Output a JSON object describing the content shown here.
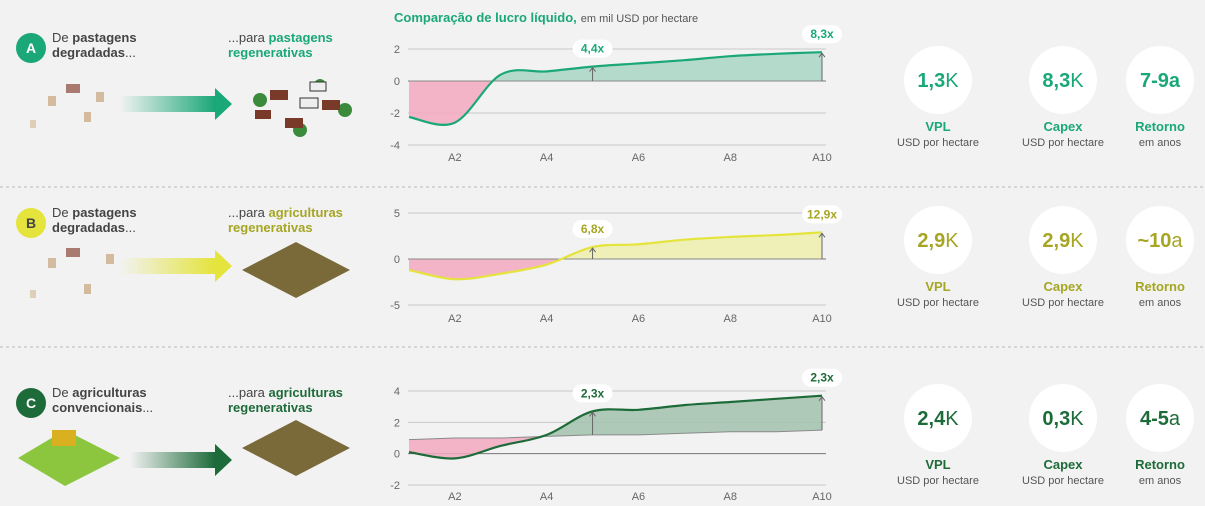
{
  "chart_data": [
    {
      "type": "line",
      "title": "Comparação de lucro líquido,",
      "subtitle": "em mil USD por hectare",
      "categories": [
        null,
        "A2",
        null,
        "A4",
        null,
        "A6",
        null,
        "A8",
        null,
        "A10"
      ],
      "series": [
        {
          "color": "#1aa878",
          "values": [
            -2.25,
            -2.6,
            0.4,
            0.6,
            0.9,
            1.1,
            1.3,
            1.55,
            1.7,
            1.8
          ]
        },
        {
          "color": "#8a8a8a",
          "values": [
            0,
            0,
            0,
            0,
            0,
            0,
            0,
            0,
            0,
            0
          ]
        }
      ],
      "fill_above": "#a9d6c4",
      "fill_below": "#f2a9be",
      "ylim": [
        -4,
        2
      ],
      "yticks": [
        -4,
        -2,
        0,
        2
      ],
      "grid": true,
      "annotations": [
        "4,4x",
        "8,3x"
      ]
    },
    {
      "type": "line",
      "categories": [
        null,
        "A2",
        null,
        "A4",
        null,
        "A6",
        null,
        "A8",
        null,
        "A10"
      ],
      "series": [
        {
          "color": "#e4e43c",
          "values": [
            -1.2,
            -2.2,
            -1.6,
            -0.6,
            1.3,
            1.6,
            2.1,
            2.4,
            2.6,
            2.9
          ]
        },
        {
          "color": "#8a8a8a",
          "values": [
            0,
            0,
            0,
            0,
            0,
            0,
            0,
            0,
            0,
            0
          ]
        }
      ],
      "fill_above": "#efefae",
      "fill_below": "#f2a9be",
      "ylim": [
        -5,
        5
      ],
      "yticks": [
        -5,
        0,
        5
      ],
      "grid": true,
      "annotations": [
        "6,8x",
        "12,9x"
      ]
    },
    {
      "type": "line",
      "categories": [
        null,
        "A2",
        null,
        "A4",
        null,
        "A6",
        null,
        "A8",
        null,
        "A10"
      ],
      "series": [
        {
          "color": "#1e6b3a",
          "values": [
            0.1,
            -0.3,
            0.5,
            1.2,
            2.7,
            2.8,
            3.1,
            3.3,
            3.5,
            3.7
          ]
        },
        {
          "color": "#8a8a8a",
          "values": [
            0.9,
            1.0,
            1.0,
            1.1,
            1.2,
            1.2,
            1.3,
            1.4,
            1.4,
            1.5
          ]
        }
      ],
      "fill_above": "#a3c2ae",
      "fill_below": "#f2a9be",
      "ylim": [
        -2,
        4
      ],
      "yticks": [
        -2,
        0,
        2,
        4
      ],
      "grid": true,
      "annotations": [
        "2,3x",
        "2,3x"
      ]
    }
  ],
  "rows": [
    {
      "letter": "A",
      "from_prefix": "De",
      "from_bold": "pastagens degradadas",
      "from_suffix": "...",
      "to_prefix": "...para",
      "to_bold": "pastagens regenerativas",
      "color": "#1aa878",
      "text_color": "#1aa878",
      "kpis": [
        {
          "value": "1,3",
          "unit": "K",
          "label": "VPL",
          "sub": "USD por hectare"
        },
        {
          "value": "8,3",
          "unit": "K",
          "label": "Capex",
          "sub": "USD por hectare"
        },
        {
          "value": "7-9a",
          "unit": "",
          "label": "Retorno",
          "sub": "em anos"
        }
      ]
    },
    {
      "letter": "B",
      "from_prefix": "De",
      "from_bold": "pastagens degradadas",
      "from_suffix": "...",
      "to_prefix": "...para",
      "to_bold": "agriculturas regenerativas",
      "color": "#e4e43c",
      "text_color": "#a6a624",
      "kpis": [
        {
          "value": "2,9",
          "unit": "K",
          "label": "VPL",
          "sub": "USD por hectare"
        },
        {
          "value": "2,9",
          "unit": "K",
          "label": "Capex",
          "sub": "USD por hectare"
        },
        {
          "value": "~10",
          "unit": "a",
          "label": "Retorno",
          "sub": "em anos"
        }
      ]
    },
    {
      "letter": "C",
      "from_prefix": "De",
      "from_bold": "agriculturas convencionais",
      "from_suffix": "...",
      "to_prefix": "...para",
      "to_bold": "agriculturas regenerativas",
      "color": "#1e6b3a",
      "text_color": "#1e6b3a",
      "kpis": [
        {
          "value": "2,4",
          "unit": "K",
          "label": "VPL",
          "sub": "USD por hectare"
        },
        {
          "value": "0,3",
          "unit": "K",
          "label": "Capex",
          "sub": "USD por hectare"
        },
        {
          "value": "4-5",
          "unit": "a",
          "label": "Retorno",
          "sub": "em anos"
        }
      ]
    }
  ]
}
